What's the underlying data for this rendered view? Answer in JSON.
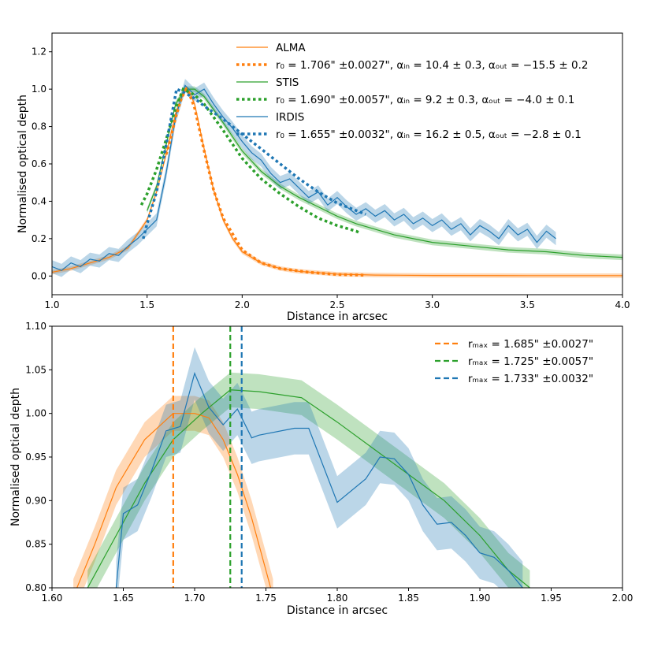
{
  "colors": {
    "alma": "#ff7f0e",
    "stis": "#2ca02c",
    "irdis": "#1f77b4"
  },
  "chart_data": [
    {
      "type": "line",
      "xlabel": "Distance in arcsec",
      "ylabel": "Normalised optical depth",
      "xlim": [
        1.0,
        4.0
      ],
      "ylim": [
        -0.1,
        1.3
      ],
      "xticks": [
        1.0,
        1.5,
        2.0,
        2.5,
        3.0,
        3.5,
        4.0
      ],
      "xtick_labels": [
        "1.0",
        "1.5",
        "2.0",
        "2.5",
        "3.0",
        "3.5",
        "4.0"
      ],
      "yticks": [
        0.0,
        0.2,
        0.4,
        0.6,
        0.8,
        1.0,
        1.2
      ],
      "ytick_labels": [
        "0.0",
        "0.2",
        "0.4",
        "0.6",
        "0.8",
        "1.0",
        "1.2"
      ],
      "legend": {
        "placement": "upper center",
        "entries": [
          {
            "label": "ALMA",
            "series": "alma",
            "style": "line"
          },
          {
            "label": "r₀ = 1.706\" ±0.0027\", αᵢₙ = 10.4 ± 0.3, αₒᵤₜ = −15.5 ± 0.2",
            "series": "alma",
            "style": "dotted"
          },
          {
            "label": "STIS",
            "series": "stis",
            "style": "line"
          },
          {
            "label": "r₀ = 1.690\" ±0.0057\", αᵢₙ = 9.2 ± 0.3, αₒᵤₜ = −4.0 ± 0.1",
            "series": "stis",
            "style": "dotted"
          },
          {
            "label": "IRDIS",
            "series": "irdis",
            "style": "line"
          },
          {
            "label": "r₀ = 1.655\" ±0.0032\", αᵢₙ = 16.2 ± 0.5, αₒᵤₜ = −2.8 ± 0.1",
            "series": "irdis",
            "style": "dotted"
          }
        ]
      },
      "series": [
        {
          "key": "alma",
          "name": "ALMA",
          "style": "line",
          "band": 0.012,
          "x": [
            1.0,
            1.1,
            1.2,
            1.3,
            1.4,
            1.5,
            1.55,
            1.6,
            1.65,
            1.7,
            1.72,
            1.75,
            1.8,
            1.85,
            1.9,
            1.95,
            2.0,
            2.1,
            2.2,
            2.3,
            2.5,
            2.7,
            3.0,
            3.5,
            4.0
          ],
          "y": [
            0.02,
            0.04,
            0.07,
            0.1,
            0.15,
            0.3,
            0.45,
            0.65,
            0.87,
            1.0,
            0.99,
            0.92,
            0.68,
            0.46,
            0.3,
            0.2,
            0.13,
            0.07,
            0.04,
            0.025,
            0.01,
            0.005,
            0.003,
            0.002,
            0.002
          ]
        },
        {
          "key": "stis",
          "name": "STIS",
          "style": "line",
          "band": 0.015,
          "x": [
            1.5,
            1.55,
            1.6,
            1.65,
            1.7,
            1.75,
            1.8,
            1.9,
            2.0,
            2.1,
            2.2,
            2.3,
            2.4,
            2.5,
            2.6,
            2.8,
            3.0,
            3.2,
            3.4,
            3.6,
            3.8,
            4.0
          ],
          "y": [
            0.35,
            0.48,
            0.7,
            0.92,
            1.0,
            1.0,
            0.96,
            0.82,
            0.67,
            0.56,
            0.48,
            0.42,
            0.37,
            0.32,
            0.28,
            0.22,
            0.18,
            0.16,
            0.14,
            0.13,
            0.11,
            0.1
          ]
        },
        {
          "key": "irdis",
          "name": "IRDIS",
          "style": "line",
          "band": 0.035,
          "x": [
            1.0,
            1.05,
            1.1,
            1.15,
            1.2,
            1.25,
            1.3,
            1.35,
            1.4,
            1.45,
            1.5,
            1.55,
            1.6,
            1.65,
            1.7,
            1.75,
            1.8,
            1.85,
            1.9,
            1.95,
            2.0,
            2.05,
            2.1,
            2.15,
            2.2,
            2.25,
            2.3,
            2.35,
            2.4,
            2.45,
            2.5,
            2.55,
            2.6,
            2.65,
            2.7,
            2.75,
            2.8,
            2.85,
            2.9,
            2.95,
            3.0,
            3.05,
            3.1,
            3.15,
            3.2,
            3.25,
            3.3,
            3.35,
            3.4,
            3.45,
            3.5,
            3.55,
            3.6,
            3.65
          ],
          "y": [
            0.05,
            0.03,
            0.07,
            0.05,
            0.09,
            0.08,
            0.12,
            0.11,
            0.16,
            0.2,
            0.25,
            0.3,
            0.55,
            0.85,
            1.02,
            0.97,
            1.0,
            0.92,
            0.85,
            0.79,
            0.72,
            0.66,
            0.62,
            0.55,
            0.5,
            0.52,
            0.47,
            0.42,
            0.45,
            0.38,
            0.42,
            0.37,
            0.33,
            0.36,
            0.32,
            0.35,
            0.3,
            0.33,
            0.28,
            0.31,
            0.27,
            0.3,
            0.25,
            0.28,
            0.22,
            0.27,
            0.24,
            0.2,
            0.27,
            0.22,
            0.25,
            0.18,
            0.24,
            0.2
          ]
        },
        {
          "key": "alma",
          "name": "ALMA fit",
          "style": "dotted",
          "x": [
            1.6,
            1.62,
            1.65,
            1.68,
            1.7,
            1.706,
            1.72,
            1.75,
            1.8,
            1.85,
            1.9,
            2.0,
            2.1,
            2.2,
            2.35,
            2.5,
            2.65
          ],
          "y": [
            0.65,
            0.72,
            0.85,
            0.95,
            0.99,
            1.0,
            0.98,
            0.9,
            0.67,
            0.46,
            0.31,
            0.14,
            0.07,
            0.04,
            0.02,
            0.008,
            0.004
          ]
        },
        {
          "key": "stis",
          "name": "STIS fit",
          "style": "dotted",
          "x": [
            1.47,
            1.5,
            1.55,
            1.6,
            1.65,
            1.69,
            1.75,
            1.8,
            1.9,
            2.0,
            2.1,
            2.2,
            2.3,
            2.4,
            2.5,
            2.6,
            2.62
          ],
          "y": [
            0.38,
            0.44,
            0.57,
            0.73,
            0.9,
            1.0,
            0.97,
            0.92,
            0.78,
            0.63,
            0.52,
            0.44,
            0.37,
            0.31,
            0.27,
            0.24,
            0.23
          ]
        },
        {
          "key": "irdis",
          "name": "IRDIS fit",
          "style": "dotted",
          "x": [
            1.48,
            1.5,
            1.55,
            1.6,
            1.655,
            1.7,
            1.75,
            1.8,
            1.9,
            2.0,
            2.1,
            2.2,
            2.3,
            2.4,
            2.5,
            2.65
          ],
          "y": [
            0.2,
            0.28,
            0.45,
            0.7,
            1.0,
            0.98,
            0.95,
            0.91,
            0.84,
            0.76,
            0.68,
            0.6,
            0.52,
            0.45,
            0.39,
            0.33
          ]
        }
      ]
    },
    {
      "type": "line",
      "xlabel": "Distance in arcsec",
      "ylabel": "Normalised optical depth",
      "xlim": [
        1.6,
        2.0
      ],
      "ylim": [
        0.8,
        1.1
      ],
      "xticks": [
        1.6,
        1.65,
        1.7,
        1.75,
        1.8,
        1.85,
        1.9,
        1.95,
        2.0
      ],
      "xtick_labels": [
        "1.60",
        "1.65",
        "1.70",
        "1.75",
        "1.80",
        "1.85",
        "1.90",
        "1.95",
        "2.00"
      ],
      "yticks": [
        0.8,
        0.85,
        0.9,
        0.95,
        1.0,
        1.05,
        1.1
      ],
      "ytick_labels": [
        "0.80",
        "0.85",
        "0.90",
        "0.95",
        "1.00",
        "1.05",
        "1.10"
      ],
      "legend": {
        "placement": "upper right",
        "entries": [
          {
            "label": "rₘₐₓ = 1.685\" ±0.0027\"",
            "series": "alma",
            "style": "dashed"
          },
          {
            "label": "rₘₐₓ = 1.725\" ±0.0057\"",
            "series": "stis",
            "style": "dashed"
          },
          {
            "label": "rₘₐₓ = 1.733\" ±0.0032\"",
            "series": "irdis",
            "style": "dashed"
          }
        ]
      },
      "vlines": [
        {
          "series": "alma",
          "x": 1.685
        },
        {
          "series": "stis",
          "x": 1.725
        },
        {
          "series": "irdis",
          "x": 1.733
        }
      ],
      "series": [
        {
          "key": "alma",
          "name": "ALMA",
          "style": "line",
          "band": 0.02,
          "x": [
            1.615,
            1.63,
            1.645,
            1.665,
            1.685,
            1.7,
            1.71,
            1.72,
            1.73,
            1.74,
            1.75,
            1.755
          ],
          "y": [
            0.79,
            0.85,
            0.915,
            0.97,
            1.0,
            1.0,
            0.995,
            0.97,
            0.93,
            0.88,
            0.82,
            0.79
          ]
        },
        {
          "key": "stis",
          "name": "STIS",
          "style": "line",
          "band": 0.02,
          "x": [
            1.625,
            1.645,
            1.665,
            1.685,
            1.705,
            1.725,
            1.745,
            1.775,
            1.8,
            1.825,
            1.85,
            1.875,
            1.9,
            1.92,
            1.935
          ],
          "y": [
            0.8,
            0.86,
            0.92,
            0.97,
            1.0,
            1.027,
            1.025,
            1.018,
            0.99,
            0.96,
            0.93,
            0.9,
            0.86,
            0.82,
            0.8
          ]
        },
        {
          "key": "irdis",
          "name": "IRDIS",
          "style": "line",
          "band": 0.03,
          "x": [
            1.645,
            1.65,
            1.66,
            1.67,
            1.68,
            1.69,
            1.7,
            1.71,
            1.72,
            1.73,
            1.74,
            1.745,
            1.77,
            1.78,
            1.8,
            1.82,
            1.83,
            1.84,
            1.85,
            1.86,
            1.87,
            1.88,
            1.89,
            1.9,
            1.91,
            1.92,
            1.93
          ],
          "y": [
            0.8,
            0.885,
            0.895,
            0.935,
            0.98,
            0.985,
            1.046,
            1.007,
            0.987,
            1.005,
            0.972,
            0.975,
            0.983,
            0.983,
            0.898,
            0.925,
            0.95,
            0.948,
            0.93,
            0.895,
            0.873,
            0.875,
            0.86,
            0.84,
            0.835,
            0.82,
            0.8
          ]
        }
      ]
    }
  ]
}
